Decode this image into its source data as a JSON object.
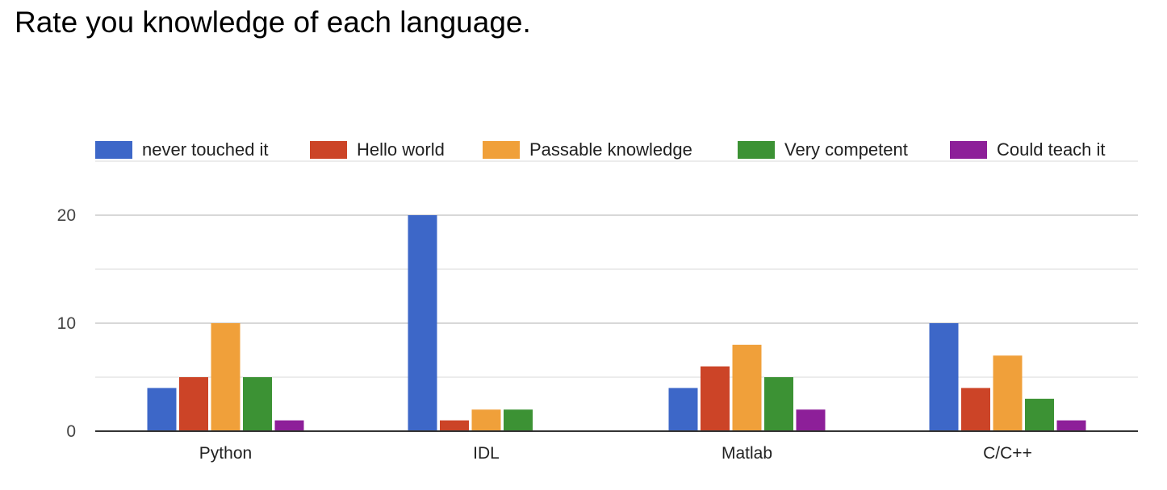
{
  "page": {
    "title": "Rate you knowledge of each language."
  },
  "chart_data": {
    "type": "bar",
    "title": "Rate you knowledge of each language.",
    "xlabel": "",
    "ylabel": "",
    "categories": [
      "Python",
      "IDL",
      "Matlab",
      "C/C++"
    ],
    "ylim": [
      0,
      25
    ],
    "yticks": [
      0,
      10,
      20
    ],
    "grid": true,
    "legend_position": "top",
    "series": [
      {
        "name": "never touched it",
        "color": "#3d67c8",
        "values": [
          4,
          20,
          4,
          10
        ]
      },
      {
        "name": "Hello world",
        "color": "#cc4427",
        "values": [
          5,
          1,
          6,
          4
        ]
      },
      {
        "name": "Passable knowledge",
        "color": "#f0a03a",
        "values": [
          10,
          2,
          8,
          7
        ]
      },
      {
        "name": "Very competent",
        "color": "#3c9234",
        "values": [
          5,
          2,
          5,
          3
        ]
      },
      {
        "name": "Could teach it",
        "color": "#8d1f99",
        "values": [
          1,
          0,
          2,
          1
        ]
      }
    ]
  }
}
